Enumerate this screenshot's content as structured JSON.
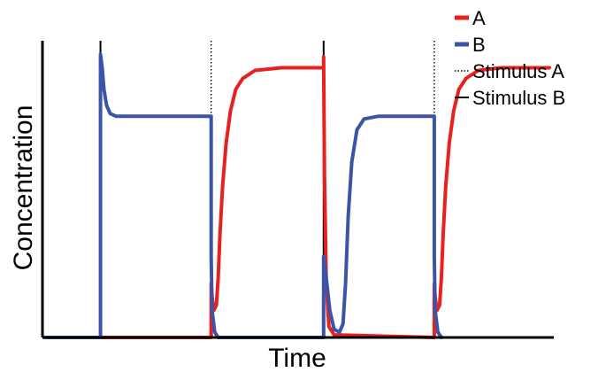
{
  "chart_data": {
    "type": "line",
    "title": "",
    "xlabel": "Time",
    "ylabel": "Concentration",
    "x_ticks": [],
    "y_ticks": [],
    "xlim": [
      0,
      580
    ],
    "ylim": [
      0,
      1.1
    ],
    "grid": false,
    "legend": {
      "position": "top-right",
      "entries": [
        {
          "label": "A",
          "style": "solid-thick",
          "color": "#e8211e"
        },
        {
          "label": "B",
          "style": "solid-thick",
          "color": "#3a55a8"
        },
        {
          "label": "Stimulus A",
          "style": "dotted",
          "color": "#000000"
        },
        {
          "label": "Stimulus B",
          "style": "solid-thin",
          "color": "#000000"
        }
      ]
    },
    "stimuli": [
      {
        "name": "Stimulus B",
        "x": 64,
        "style": "solid"
      },
      {
        "name": "Stimulus A",
        "x": 190,
        "style": "dotted"
      },
      {
        "name": "Stimulus B",
        "x": 318,
        "style": "solid"
      },
      {
        "name": "Stimulus A",
        "x": 444,
        "style": "dotted"
      }
    ],
    "series": [
      {
        "name": "A",
        "color": "#e8211e",
        "points": [
          [
            0,
            0
          ],
          [
            190,
            0
          ],
          [
            190,
            0.2
          ],
          [
            191,
            0.15
          ],
          [
            193,
            0.1
          ],
          [
            196,
            0.12
          ],
          [
            198,
            0.22
          ],
          [
            200,
            0.38
          ],
          [
            203,
            0.56
          ],
          [
            207,
            0.72
          ],
          [
            212,
            0.84
          ],
          [
            218,
            0.92
          ],
          [
            226,
            0.96
          ],
          [
            240,
            0.99
          ],
          [
            270,
            1.0
          ],
          [
            318,
            1.0
          ],
          [
            318,
            1.04
          ],
          [
            319,
            0.6
          ],
          [
            321,
            0.2
          ],
          [
            324,
            0.04
          ],
          [
            330,
            0.01
          ],
          [
            444,
            0
          ],
          [
            444,
            0.2
          ],
          [
            445,
            0.15
          ],
          [
            447,
            0.1
          ],
          [
            450,
            0.12
          ],
          [
            452,
            0.22
          ],
          [
            454,
            0.38
          ],
          [
            457,
            0.56
          ],
          [
            461,
            0.72
          ],
          [
            466,
            0.84
          ],
          [
            472,
            0.92
          ],
          [
            480,
            0.96
          ],
          [
            494,
            0.99
          ],
          [
            520,
            1.0
          ],
          [
            575,
            1.0
          ]
        ]
      },
      {
        "name": "B",
        "color": "#3a55a8",
        "points": [
          [
            0,
            0
          ],
          [
            64,
            0
          ],
          [
            64,
            1.05
          ],
          [
            66,
            1.0
          ],
          [
            68,
            0.92
          ],
          [
            71,
            0.86
          ],
          [
            75,
            0.83
          ],
          [
            82,
            0.82
          ],
          [
            100,
            0.82
          ],
          [
            190,
            0.82
          ],
          [
            190,
            0.3
          ],
          [
            191,
            0.1
          ],
          [
            194,
            0.02
          ],
          [
            198,
            0
          ],
          [
            318,
            0
          ],
          [
            318,
            0.3
          ],
          [
            321,
            0.22
          ],
          [
            325,
            0.1
          ],
          [
            330,
            0.03
          ],
          [
            336,
            0.02
          ],
          [
            340,
            0.05
          ],
          [
            343,
            0.2
          ],
          [
            346,
            0.45
          ],
          [
            350,
            0.65
          ],
          [
            356,
            0.77
          ],
          [
            364,
            0.81
          ],
          [
            380,
            0.82
          ],
          [
            444,
            0.82
          ],
          [
            444,
            0.3
          ],
          [
            445,
            0.1
          ],
          [
            448,
            0.02
          ],
          [
            452,
            0
          ]
        ]
      }
    ]
  }
}
